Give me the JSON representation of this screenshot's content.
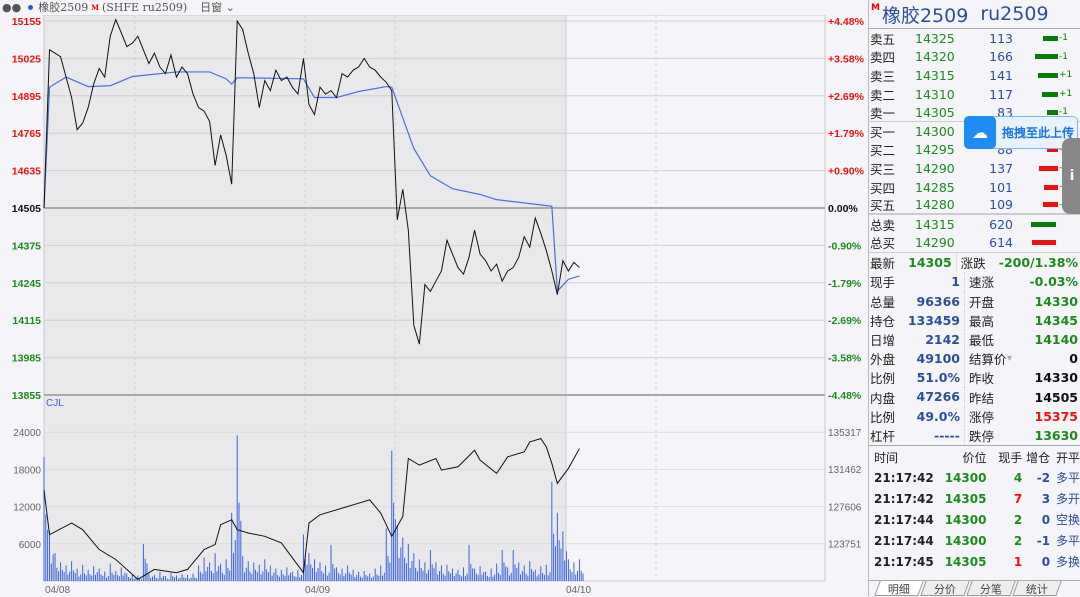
{
  "header": {
    "name": "橡胶2509",
    "mark": "M",
    "code": "(SHFE ru2509)",
    "period": "日窗"
  },
  "title": {
    "mark": "M",
    "name": "橡胶2509",
    "code": "ru2509"
  },
  "colors": {
    "up": "#ee1111",
    "down": "#1d8a1d",
    "avg": "#4a6fd8",
    "price": "#111111",
    "volume": "#3a64e0"
  },
  "orderbook": {
    "asks": [
      {
        "label": "卖五",
        "price": "14325",
        "vol": "113",
        "chg": "-1",
        "bar": 15
      },
      {
        "label": "卖四",
        "price": "14320",
        "vol": "166",
        "chg": "-1",
        "bar": 23
      },
      {
        "label": "卖三",
        "price": "14315",
        "vol": "141",
        "chg": "+1",
        "bar": 20
      },
      {
        "label": "卖二",
        "price": "14310",
        "vol": "117",
        "chg": "+1",
        "bar": 16
      },
      {
        "label": "卖一",
        "price": "14305",
        "vol": "83",
        "chg": "-1",
        "bar": 11
      }
    ],
    "bids": [
      {
        "label": "买一",
        "price": "14300",
        "vol": "",
        "chg": "",
        "bar": 0
      },
      {
        "label": "买二",
        "price": "14295",
        "vol": "88",
        "chg": "-1",
        "bar": 11
      },
      {
        "label": "买三",
        "price": "14290",
        "vol": "137",
        "chg": "-1",
        "bar": 19
      },
      {
        "label": "买四",
        "price": "14285",
        "vol": "101",
        "chg": "+2",
        "bar": 14
      },
      {
        "label": "买五",
        "price": "14280",
        "vol": "109",
        "chg": "-10",
        "bar": 15
      }
    ],
    "totals": [
      {
        "label": "总卖",
        "price": "14315",
        "vol": "620",
        "bar": 25,
        "color": "#0a7a0a"
      },
      {
        "label": "总买",
        "price": "14290",
        "vol": "614",
        "bar": 24,
        "color": "#ee1111"
      }
    ]
  },
  "quote": [
    {
      "k": "最新",
      "v": "14305",
      "vc": "green",
      "k2": "涨跌",
      "v2": "-200/1.38%",
      "v2c": "green"
    },
    {
      "k": "现手",
      "v": "1",
      "vc": "blue",
      "k2": "速涨",
      "v2": "-0.03%",
      "v2c": "green"
    },
    {
      "k": "总量",
      "v": "96366",
      "vc": "blue",
      "k2": "开盘",
      "v2": "14330",
      "v2c": "green"
    },
    {
      "k": "持仓",
      "v": "133459",
      "vc": "blue",
      "k2": "最高",
      "v2": "14345",
      "v2c": "green"
    },
    {
      "k": "日增",
      "v": "2142",
      "vc": "blue",
      "k2": "最低",
      "v2": "14140",
      "v2c": "green"
    },
    {
      "k": "外盘",
      "v": "49100",
      "vc": "blue",
      "k2": "结算价",
      "v2": "0",
      "v2c": "black"
    },
    {
      "k": "比例",
      "v": "51.0%",
      "vc": "blue",
      "k2": "昨收",
      "v2": "14330",
      "v2c": "black"
    },
    {
      "k": "内盘",
      "v": "47266",
      "vc": "blue",
      "k2": "昨结",
      "v2": "14505",
      "v2c": "black"
    },
    {
      "k": "比例",
      "v": "49.0%",
      "vc": "blue",
      "k2": "涨停",
      "v2": "15375",
      "v2c": "red"
    },
    {
      "k": "杠杆",
      "v": "-----",
      "vc": "blue",
      "k2": "跌停",
      "v2": "13630",
      "v2c": "green"
    }
  ],
  "ticks": {
    "headers": [
      "时间",
      "价位",
      "现手",
      "增仓",
      "开平"
    ],
    "rows": [
      {
        "time": "21:17:42",
        "price": "14300",
        "qty": "4",
        "qc": "green",
        "oi": "-2",
        "type": "多平"
      },
      {
        "time": "21:17:42",
        "price": "14305",
        "qty": "7",
        "qc": "red",
        "oi": "3",
        "type": "多开"
      },
      {
        "time": "21:17:44",
        "price": "14300",
        "qty": "2",
        "qc": "green",
        "oi": "0",
        "type": "空换"
      },
      {
        "time": "21:17:44",
        "price": "14300",
        "qty": "2",
        "qc": "green",
        "oi": "-1",
        "type": "多平"
      },
      {
        "time": "21:17:45",
        "price": "14305",
        "qty": "1",
        "qc": "red",
        "oi": "0",
        "type": "多换"
      }
    ]
  },
  "tabs": [
    "明细",
    "分价",
    "分笔",
    "统计"
  ],
  "overlay": {
    "upload_label": "拖拽至此上传",
    "side_label": "i"
  },
  "chart_data": [
    {
      "type": "line",
      "title": "",
      "ylabel": "",
      "prev_settle": 14505,
      "y_ticks": [
        "15155",
        "15025",
        "14895",
        "14765",
        "14635",
        "14505",
        "14375",
        "14245",
        "14115",
        "13985",
        "13855"
      ],
      "pct_ticks": [
        "+4.48%",
        "+3.58%",
        "+2.69%",
        "+1.79%",
        "+0.90%",
        "0.00%",
        "-0.90%",
        "-1.79%",
        "-2.69%",
        "-3.58%",
        "-4.48%"
      ],
      "ylim": [
        13855,
        15155
      ],
      "x_ticks": [
        "04/08",
        "04/09",
        "04/10"
      ],
      "price": [
        14505,
        15055,
        15043,
        15031,
        14960,
        14889,
        14777,
        14800,
        14854,
        14936,
        14990,
        14960,
        15102,
        15160,
        15114,
        15066,
        15078,
        15102,
        15055,
        15007,
        15043,
        14995,
        14972,
        15037,
        14960,
        14995,
        14972,
        14901,
        14854,
        14842,
        14806,
        14653,
        14759,
        14688,
        14588,
        15155,
        15125,
        15043,
        14972,
        14854,
        14948,
        14913,
        14984,
        14948,
        14960,
        14925,
        14901,
        15025,
        14865,
        14830,
        14925,
        14901,
        14913,
        14889,
        14972,
        14960,
        14984,
        14995,
        15025,
        14995,
        14984,
        14960,
        14942,
        14913,
        14464,
        14570,
        14428,
        14097,
        14032,
        14239,
        14215,
        14251,
        14286,
        14393,
        14345,
        14298,
        14275,
        14334,
        14428,
        14345,
        14322,
        14286,
        14310,
        14251,
        14286,
        14298,
        14334,
        14405,
        14369,
        14470,
        14417,
        14357,
        14286,
        14204,
        14322,
        14286,
        14316,
        14298
      ],
      "avg": [
        [
          0,
          14505
        ],
        [
          1,
          14925
        ],
        [
          4,
          14960
        ],
        [
          8,
          14927
        ],
        [
          12,
          14930
        ],
        [
          16,
          14962
        ],
        [
          24,
          14978
        ],
        [
          30,
          14978
        ],
        [
          33,
          14954
        ],
        [
          34,
          14936
        ],
        [
          35,
          14958
        ],
        [
          47,
          14954
        ],
        [
          49,
          14889
        ],
        [
          53,
          14889
        ],
        [
          57,
          14910
        ],
        [
          62,
          14927
        ],
        [
          63,
          14925
        ],
        [
          65,
          14818
        ],
        [
          67,
          14712
        ],
        [
          70,
          14617
        ],
        [
          74,
          14572
        ],
        [
          79,
          14552
        ],
        [
          82,
          14534
        ],
        [
          86,
          14525
        ],
        [
          92,
          14511
        ],
        [
          93,
          14216
        ],
        [
          95,
          14257
        ],
        [
          97,
          14269
        ]
      ]
    },
    {
      "type": "bar",
      "title": "CJL",
      "y_ticks": [
        "24000",
        "18000",
        "12000",
        "6000"
      ],
      "ylim": [
        0,
        24000
      ],
      "oi_ticks": [
        "135317",
        "131462",
        "127606",
        "123751"
      ],
      "oi_lim": [
        119895,
        135317
      ],
      "volume": [
        20000,
        8000,
        4500,
        3000,
        2500,
        3200,
        2000,
        2600,
        1800,
        2400,
        2000,
        1500,
        2800,
        1600,
        2200,
        1200,
        1000,
        900,
        6000,
        1200,
        1000,
        1500,
        800,
        1300,
        900,
        1100,
        1000,
        1200,
        2500,
        3800,
        3000,
        4500,
        2800,
        3500,
        11000,
        23500,
        4000,
        3200,
        3000,
        2600,
        3500,
        2500,
        2000,
        1800,
        2200,
        1500,
        1800,
        7500,
        4500,
        3500,
        3000,
        2500,
        5800,
        2200,
        2000,
        2500,
        1800,
        1500,
        1600,
        1200,
        2000,
        2500,
        8500,
        21000,
        9000,
        7000,
        6000,
        4500,
        3500,
        3000,
        5000,
        3000,
        2500,
        2600,
        2000,
        1800,
        2200,
        5800,
        2000,
        2400,
        1500,
        2000,
        2800,
        5000,
        2200,
        5000,
        3000,
        2500,
        3200,
        1800,
        2400,
        2600,
        16000,
        11000,
        8000,
        3500,
        3000,
        3500
      ],
      "open_interest": [
        [
          0,
          129320
        ],
        [
          1,
          124693
        ],
        [
          5,
          125893
        ],
        [
          7,
          125207
        ],
        [
          10,
          123151
        ],
        [
          13,
          122123
        ],
        [
          17,
          120067
        ],
        [
          20,
          121095
        ],
        [
          24,
          120752
        ],
        [
          26,
          121095
        ],
        [
          29,
          123151
        ],
        [
          31,
          123665
        ],
        [
          32,
          125721
        ],
        [
          34,
          126235
        ],
        [
          35,
          125207
        ],
        [
          37,
          124864
        ],
        [
          40,
          124521
        ],
        [
          43,
          123836
        ],
        [
          47,
          120752
        ],
        [
          48,
          125893
        ],
        [
          50,
          126750
        ],
        [
          54,
          127435
        ],
        [
          57,
          127949
        ],
        [
          59,
          128292
        ],
        [
          61,
          126921
        ],
        [
          63,
          124521
        ],
        [
          65,
          126578
        ],
        [
          66,
          132575
        ],
        [
          68,
          131889
        ],
        [
          71,
          132575
        ],
        [
          72,
          131375
        ],
        [
          75,
          131718
        ],
        [
          78,
          133432
        ],
        [
          79,
          132404
        ],
        [
          82,
          131033
        ],
        [
          84,
          132747
        ],
        [
          87,
          133261
        ],
        [
          88,
          134289
        ],
        [
          90,
          134632
        ],
        [
          91,
          133775
        ],
        [
          92,
          132061
        ],
        [
          93,
          130005
        ],
        [
          95,
          131547
        ],
        [
          97,
          133603
        ]
      ]
    }
  ]
}
